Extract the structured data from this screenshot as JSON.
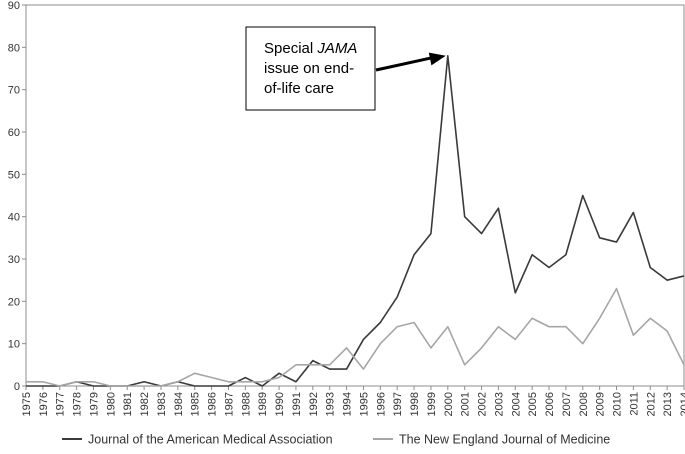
{
  "chart_data": {
    "type": "line",
    "title": "",
    "xlabel": "",
    "ylabel": "",
    "x": [
      "1975",
      "1976",
      "1977",
      "1978",
      "1979",
      "1980",
      "1981",
      "1982",
      "1983",
      "1984",
      "1985",
      "1986",
      "1987",
      "1988",
      "1989",
      "1990",
      "1991",
      "1992",
      "1993",
      "1994",
      "1995",
      "1996",
      "1997",
      "1998",
      "1999",
      "2000",
      "2001",
      "2002",
      "2003",
      "2004",
      "2005",
      "2006",
      "2007",
      "2008",
      "2009",
      "2010",
      "2011",
      "2012",
      "2013",
      "2014"
    ],
    "ylim": [
      0,
      90
    ],
    "yticks": [
      0,
      10,
      20,
      30,
      40,
      50,
      60,
      70,
      80,
      90
    ],
    "grid": false,
    "legend_position": "bottom",
    "series": [
      {
        "name": "Journal of the American Medical Association",
        "color": "#3a3a3a",
        "values": [
          0,
          0,
          0,
          1,
          0,
          0,
          0,
          1,
          0,
          1,
          0,
          0,
          0,
          2,
          0,
          3,
          1,
          6,
          4,
          4,
          11,
          15,
          21,
          31,
          36,
          78,
          40,
          36,
          42,
          22,
          31,
          28,
          31,
          45,
          35,
          34,
          41,
          28,
          25,
          26
        ]
      },
      {
        "name": "The New England Journal of Medicine",
        "color": "#a6a6a6",
        "values": [
          1,
          1,
          0,
          1,
          1,
          0,
          0,
          0,
          0,
          1,
          3,
          2,
          1,
          1,
          1,
          2,
          5,
          5,
          5,
          9,
          4,
          10,
          14,
          15,
          9,
          14,
          5,
          9,
          14,
          11,
          16,
          14,
          14,
          10,
          16,
          23,
          12,
          16,
          13,
          5
        ]
      }
    ],
    "annotation": {
      "lines": [
        "Special JAMA",
        "issue on end-",
        "of-life care"
      ],
      "emphasis": "JAMA",
      "points_to": {
        "x": "2000",
        "y": 78
      }
    }
  }
}
